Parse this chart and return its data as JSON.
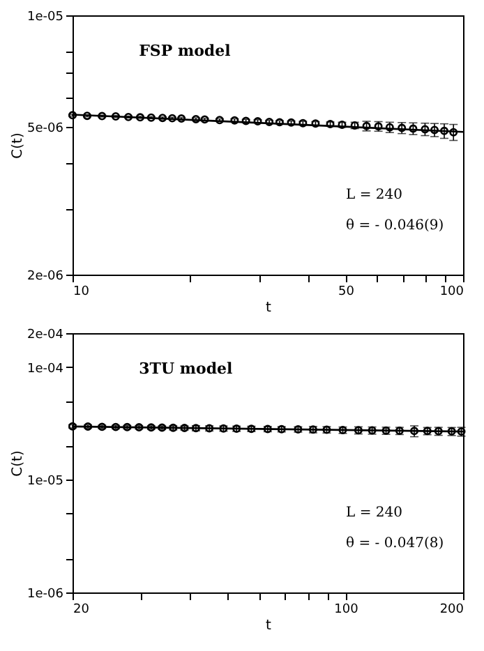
{
  "chart_data": [
    {
      "type": "scatter",
      "title": "FSP model",
      "xlabel": "t",
      "ylabel": "C(t)",
      "log": "xy",
      "grid": false,
      "marker": "circle",
      "xlim": [
        10,
        100
      ],
      "xticks": [
        10,
        {
          "value": 20,
          "label": null
        },
        {
          "value": 30,
          "label": null
        },
        {
          "value": 40,
          "label": null
        },
        50,
        {
          "value": 60,
          "label": null
        },
        {
          "value": 70,
          "label": null
        },
        {
          "value": 80,
          "label": null
        },
        {
          "value": 90,
          "label": null
        },
        100
      ],
      "ylim": [
        2e-06,
        1e-05
      ],
      "yticks": [
        {
          "value": 2e-06,
          "label": "2e-06"
        },
        {
          "value": 3e-06,
          "label": null
        },
        {
          "value": 4e-06,
          "label": null
        },
        {
          "value": 5e-06,
          "label": "5e-06"
        },
        {
          "value": 6e-06,
          "label": null
        },
        {
          "value": 7e-06,
          "label": null
        },
        {
          "value": 8e-06,
          "label": null
        },
        {
          "value": 1e-05,
          "label": "1e-05"
        }
      ],
      "annotations": [
        "L = 240",
        "θ = - 0.046(9)"
      ],
      "series": [
        {
          "type": "scatter",
          "color": "#000000",
          "x": [
            10,
            10.9,
            11.9,
            12.9,
            13.9,
            14.9,
            15.9,
            17,
            18,
            19,
            20.7,
            21.8,
            23.8,
            26,
            27.8,
            29.8,
            31.9,
            33.9,
            36.3,
            38.9,
            41.9,
            45.7,
            49,
            52.8,
            56.6,
            60.7,
            64.9,
            69.7,
            74.5,
            79.9,
            84.5,
            89.5,
            94.5
          ],
          "values": [
            5.38e-06,
            5.36e-06,
            5.35e-06,
            5.34e-06,
            5.32e-06,
            5.31e-06,
            5.3e-06,
            5.29e-06,
            5.28e-06,
            5.27e-06,
            5.25e-06,
            5.24e-06,
            5.22e-06,
            5.21e-06,
            5.19e-06,
            5.18e-06,
            5.16e-06,
            5.15e-06,
            5.14e-06,
            5.12e-06,
            5.11e-06,
            5.09e-06,
            5.07e-06,
            5.05e-06,
            5.03e-06,
            5.02e-06,
            4.99e-06,
            4.97e-06,
            4.95e-06,
            4.93e-06,
            4.91e-06,
            4.88e-06,
            4.84e-06
          ],
          "errors": [
            3e-08,
            3e-08,
            3e-08,
            3e-08,
            3e-08,
            3e-08,
            3e-08,
            3e-08,
            3e-08,
            3e-08,
            4e-08,
            4e-08,
            4e-08,
            5e-08,
            5e-08,
            5e-08,
            5e-08,
            5e-08,
            5e-08,
            6e-08,
            6e-08,
            7e-08,
            8e-08,
            1e-07,
            1.5e-07,
            1.5e-07,
            1.6e-07,
            1.7e-07,
            1.8e-07,
            1.9e-07,
            2e-07,
            2.2e-07,
            2.4e-07
          ]
        },
        {
          "type": "line",
          "color": "#000000",
          "marker": "none",
          "x": [
            10,
            100
          ],
          "values": [
            5.4e-06,
            4.85e-06
          ]
        }
      ]
    },
    {
      "type": "scatter",
      "title": "3TU model",
      "xlabel": "t",
      "ylabel": "C(t)",
      "log": "xy",
      "grid": false,
      "marker": "circle",
      "xlim": [
        20,
        200
      ],
      "xticks": [
        20,
        {
          "value": 30,
          "label": null
        },
        {
          "value": 40,
          "label": null
        },
        {
          "value": 50,
          "label": null
        },
        {
          "value": 60,
          "label": null
        },
        {
          "value": 70,
          "label": null
        },
        {
          "value": 80,
          "label": null
        },
        {
          "value": 90,
          "label": null
        },
        100,
        200
      ],
      "ylim": [
        1e-06,
        0.0002
      ],
      "yticks": [
        {
          "value": 1e-06,
          "label": "1e-06"
        },
        {
          "value": 2e-06,
          "label": null
        },
        {
          "value": 5e-06,
          "label": null
        },
        {
          "value": 1e-05,
          "label": "1e-05"
        },
        {
          "value": 2e-05,
          "label": null
        },
        {
          "value": 5e-05,
          "label": null
        },
        {
          "value": 0.0001,
          "label": "1e-04"
        },
        {
          "value": 0.0002,
          "label": "2e-04"
        }
      ],
      "annotations": [
        "L = 240",
        "θ = - 0.047(8)"
      ],
      "series": [
        {
          "type": "scatter",
          "color": "#000000",
          "x": [
            20,
            21.9,
            23.8,
            25.8,
            27.6,
            29.6,
            31.8,
            33.9,
            36.2,
            38.7,
            41.4,
            44.8,
            48.7,
            52.6,
            57.4,
            63.2,
            68.6,
            75.6,
            82.6,
            89.5,
            98.4,
            107.9,
            117,
            127,
            137.5,
            150,
            162,
            173,
            187,
            198
          ],
          "values": [
            2.98e-05,
            2.97e-05,
            2.95e-05,
            2.94e-05,
            2.93e-05,
            2.92e-05,
            2.91e-05,
            2.9e-05,
            2.89e-05,
            2.88e-05,
            2.87e-05,
            2.86e-05,
            2.85e-05,
            2.84e-05,
            2.83e-05,
            2.82e-05,
            2.81e-05,
            2.8e-05,
            2.79e-05,
            2.78e-05,
            2.76e-05,
            2.75e-05,
            2.74e-05,
            2.73e-05,
            2.72e-05,
            2.71e-05,
            2.71e-05,
            2.7e-05,
            2.69e-05,
            2.68e-05
          ],
          "errors": [
            1e-06,
            1e-06,
            1e-06,
            1e-06,
            1e-06,
            1e-06,
            1e-06,
            1e-06,
            1.2e-06,
            1.2e-06,
            1.5e-06,
            1.5e-06,
            1.5e-06,
            1.5e-06,
            1.5e-06,
            1.5e-06,
            1.5e-06,
            1.5e-06,
            1.8e-06,
            1.8e-06,
            1.8e-06,
            2e-06,
            2e-06,
            2e-06,
            2e-06,
            3e-06,
            2e-06,
            2.2e-06,
            2.2e-06,
            2.4e-06
          ]
        },
        {
          "type": "line",
          "color": "#000000",
          "marker": "none",
          "x": [
            20,
            200
          ],
          "values": [
            2.97e-05,
            2.68e-05
          ]
        }
      ]
    }
  ]
}
